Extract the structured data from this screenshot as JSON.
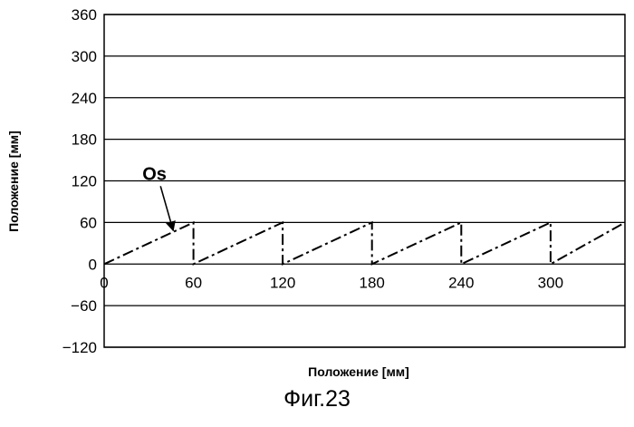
{
  "chart_data": {
    "type": "line",
    "title": "",
    "xlabel": "Положение [мм]",
    "ylabel": "Положение [мм]",
    "xlim": [
      0,
      350
    ],
    "ylim": [
      -120,
      360
    ],
    "x_ticks": [
      0,
      60,
      120,
      180,
      240,
      300
    ],
    "y_ticks": [
      360,
      300,
      240,
      180,
      120,
      60,
      0,
      -60,
      -120
    ],
    "grid": "horizontal",
    "series": [
      {
        "name": "Os",
        "line_style": "dash-dot",
        "color": "#000000",
        "points": [
          [
            0,
            0
          ],
          [
            60,
            60
          ],
          [
            60,
            0
          ],
          [
            120,
            60
          ],
          [
            120,
            0
          ],
          [
            180,
            60
          ],
          [
            180,
            0
          ],
          [
            240,
            60
          ],
          [
            240,
            0
          ],
          [
            300,
            60
          ],
          [
            300,
            0
          ],
          [
            350,
            60
          ]
        ]
      }
    ],
    "annotations": [
      {
        "text": "Os",
        "points_to": [
          47,
          47
        ]
      }
    ]
  },
  "caption": "Фиг.23"
}
